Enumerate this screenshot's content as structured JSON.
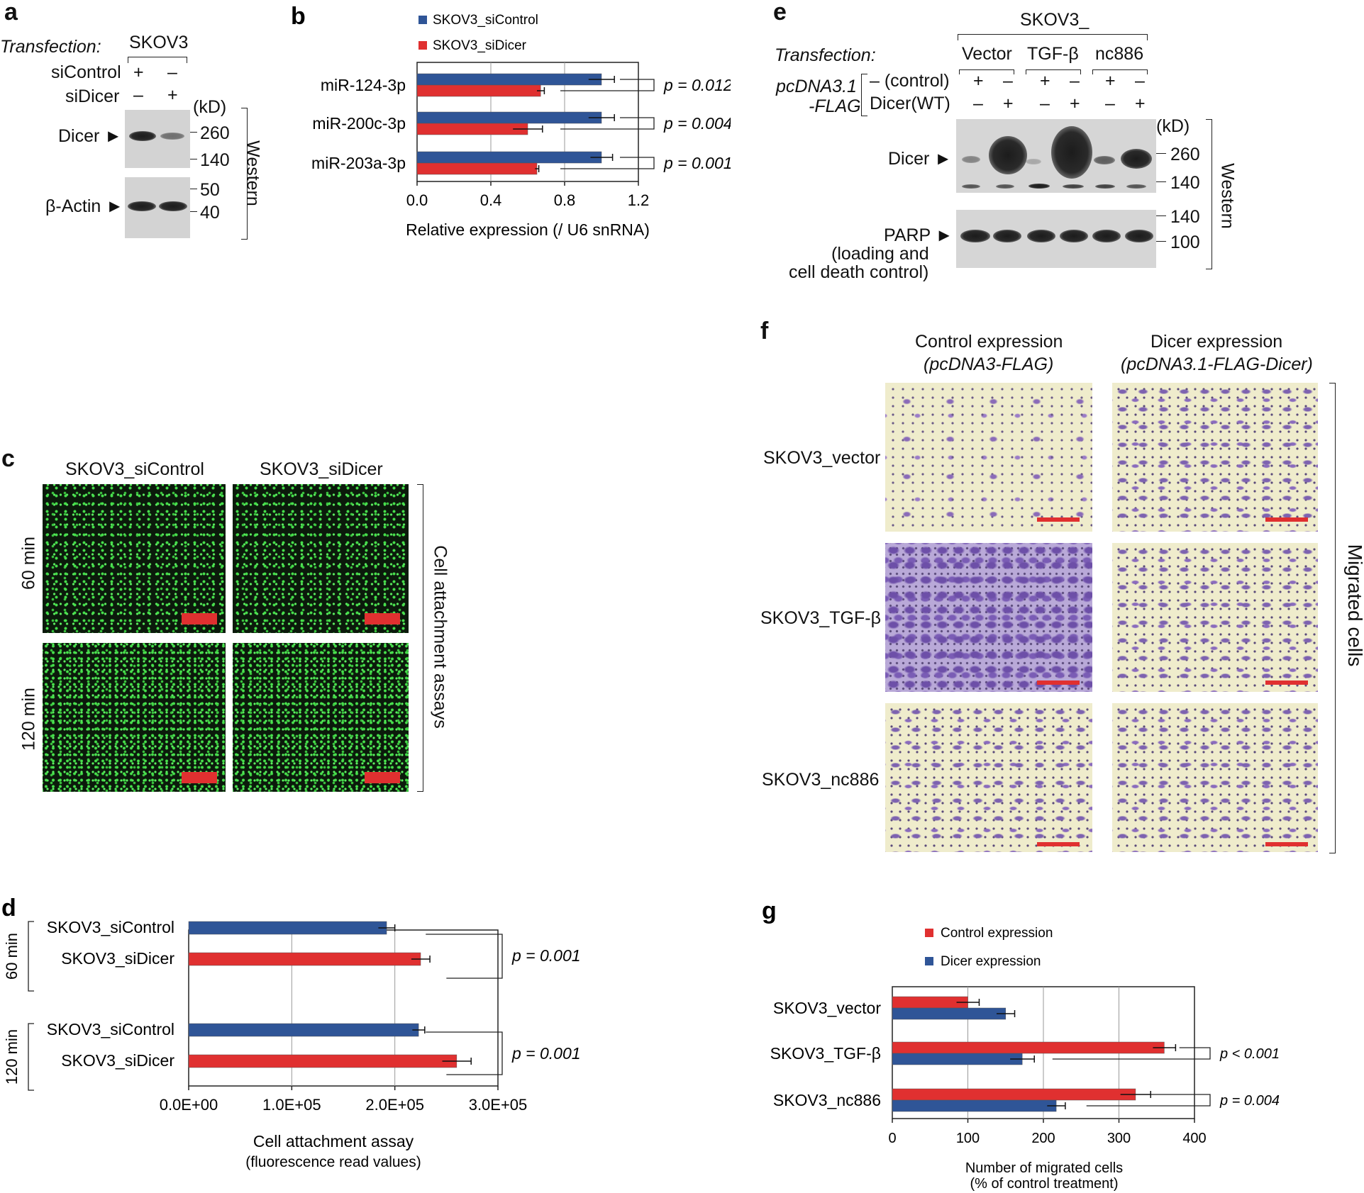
{
  "panel_a": {
    "letter": "a",
    "transfection_label": "Transfection:",
    "cell_line": "SKOV3",
    "rows": [
      {
        "label": "siControl",
        "lane1": "+",
        "lane2": "–"
      },
      {
        "label": "siDicer",
        "lane1": "–",
        "lane2": "+"
      }
    ],
    "kd": "(kD)",
    "dicer_label": "Dicer ►",
    "actin_label": "β-Actin ►",
    "markers_top": [
      "260",
      "140"
    ],
    "markers_bottom": [
      "50",
      "40"
    ],
    "side_label": "Western"
  },
  "panel_c": {
    "letter": "c",
    "col1": "SKOV3_siControl",
    "col2": "SKOV3_siDicer",
    "row1": "60 min",
    "row2": "120 min",
    "side_label": "Cell attachment assays"
  },
  "panel_e": {
    "letter": "e",
    "cell_line": "SKOV3_",
    "transfection_label": "Transfection:",
    "groups": [
      "Vector",
      "TGF-β",
      "nc886"
    ],
    "plasmid_line1": "pcDNA3.1",
    "plasmid_line2": "-FLAG",
    "rows": [
      {
        "label": "– (control)",
        "signs": [
          "+",
          "–",
          "+",
          "–",
          "+",
          "–"
        ]
      },
      {
        "label": "Dicer(WT)",
        "signs": [
          "–",
          "+",
          "–",
          "+",
          "–",
          "+"
        ]
      }
    ],
    "kd": "(kD)",
    "dicer_label": "Dicer ►",
    "parp_label": "PARP ►",
    "parp_sub1": "(loading and",
    "parp_sub2": "cell death control)",
    "markers_top": [
      "260",
      "140"
    ],
    "markers_bottom": [
      "140",
      "100"
    ],
    "side_label": "Western"
  },
  "panel_f": {
    "letter": "f",
    "col1_title": "Control expression",
    "col1_sub": "(pcDNA3-FLAG)",
    "col2_title": "Dicer expression",
    "col2_sub": "(pcDNA3.1-FLAG-Dicer)",
    "rows": [
      "SKOV3_vector",
      "SKOV3_TGF-β",
      "SKOV3_nc886"
    ],
    "side_label": "Migrated cells"
  },
  "chart_data": [
    {
      "panel": "b",
      "letter": "b",
      "type": "bar",
      "orientation": "horizontal",
      "categories": [
        "miR-124-3p",
        "miR-200c-3p",
        "miR-203a-3p"
      ],
      "series": [
        {
          "name": "SKOV3_siControl",
          "color": "#2f5597",
          "values": [
            1.0,
            1.0,
            1.0
          ],
          "errors": [
            0.07,
            0.07,
            0.06
          ]
        },
        {
          "name": "SKOV3_siDicer",
          "color": "#e03030",
          "values": [
            0.67,
            0.6,
            0.65
          ],
          "errors": [
            0.02,
            0.08,
            0.01
          ]
        }
      ],
      "p_values": [
        "p = 0.012",
        "p = 0.004",
        "p = 0.001"
      ],
      "xlabel": "Relative expression (/ U6 snRNA)",
      "xlim": [
        0,
        1.2
      ],
      "xticks": [
        "0.0",
        "0.4",
        "0.8",
        "1.2"
      ],
      "grid": true,
      "legend": "top"
    },
    {
      "panel": "d",
      "letter": "d",
      "type": "bar",
      "orientation": "horizontal",
      "groups": [
        "60 min",
        "120 min"
      ],
      "categories": [
        "SKOV3_siControl",
        "SKOV3_siDicer",
        "SKOV3_siControl",
        "SKOV3_siDicer"
      ],
      "values": [
        192000,
        225000,
        223000,
        260000
      ],
      "errors": [
        8000,
        9000,
        6000,
        14000
      ],
      "colors": [
        "#2f5597",
        "#e03030",
        "#2f5597",
        "#e03030"
      ],
      "p_values": [
        "p = 0.001",
        "p = 0.001"
      ],
      "xlabel": "Cell attachment assay",
      "xlabel2": "(fluorescence read values)",
      "xlim": [
        0,
        300000
      ],
      "xticks": [
        "0.0E+00",
        "1.0E+05",
        "2.0E+05",
        "3.0E+05"
      ],
      "grid": true
    },
    {
      "panel": "g",
      "letter": "g",
      "type": "bar",
      "orientation": "horizontal",
      "categories": [
        "SKOV3_vector",
        "SKOV3_TGF-β",
        "SKOV3_nc886"
      ],
      "series": [
        {
          "name": "Control expression",
          "color": "#e03030",
          "values": [
            100,
            360,
            322
          ],
          "errors": [
            15,
            15,
            20
          ]
        },
        {
          "name": "Dicer expression",
          "color": "#2f5597",
          "values": [
            150,
            172,
            217
          ],
          "errors": [
            12,
            16,
            12
          ]
        }
      ],
      "p_values": [
        "",
        "p < 0.001",
        "p = 0.004"
      ],
      "xlabel": "Number of migrated cells",
      "xlabel2": "(% of control treatment)",
      "xlim": [
        0,
        400
      ],
      "xticks": [
        "0",
        "100",
        "200",
        "300",
        "400"
      ],
      "grid": true,
      "legend": "top"
    }
  ]
}
